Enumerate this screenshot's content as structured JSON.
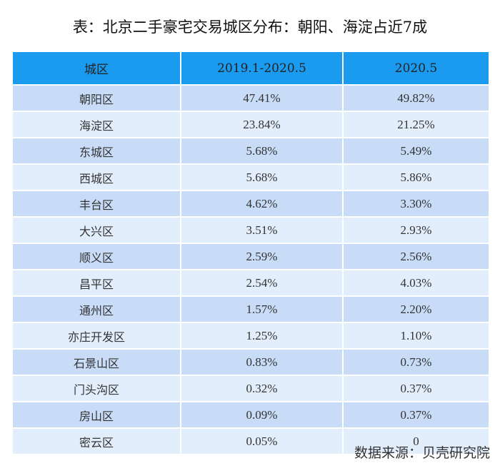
{
  "title": "表：北京二手豪宅交易城区分布：朝阳、海淀占近7成",
  "headers": [
    "城区",
    "2019.1-2020.5",
    "2020.5"
  ],
  "rows": [
    [
      "朝阳区",
      "47.41%",
      "49.82%"
    ],
    [
      "海淀区",
      "23.84%",
      "21.25%"
    ],
    [
      "东城区",
      "5.68%",
      "5.49%"
    ],
    [
      "西城区",
      "5.68%",
      "5.86%"
    ],
    [
      "丰台区",
      "4.62%",
      "3.30%"
    ],
    [
      "大兴区",
      "3.51%",
      "2.93%"
    ],
    [
      "顺义区",
      "2.59%",
      "2.56%"
    ],
    [
      "昌平区",
      "2.54%",
      "4.03%"
    ],
    [
      "通州区",
      "1.57%",
      "2.20%"
    ],
    [
      "亦庄开发区",
      "1.25%",
      "1.10%"
    ],
    [
      "石景山区",
      "0.83%",
      "0.73%"
    ],
    [
      "门头沟区",
      "0.32%",
      "0.37%"
    ],
    [
      "房山区",
      "0.09%",
      "0.37%"
    ],
    [
      "密云区",
      "0.05%",
      "0"
    ]
  ],
  "source": "数据来源：贝壳研究院",
  "colors": {
    "header": "#1a9bf0",
    "row_odd": "#c8dcf8",
    "row_even": "#e3eefc"
  }
}
